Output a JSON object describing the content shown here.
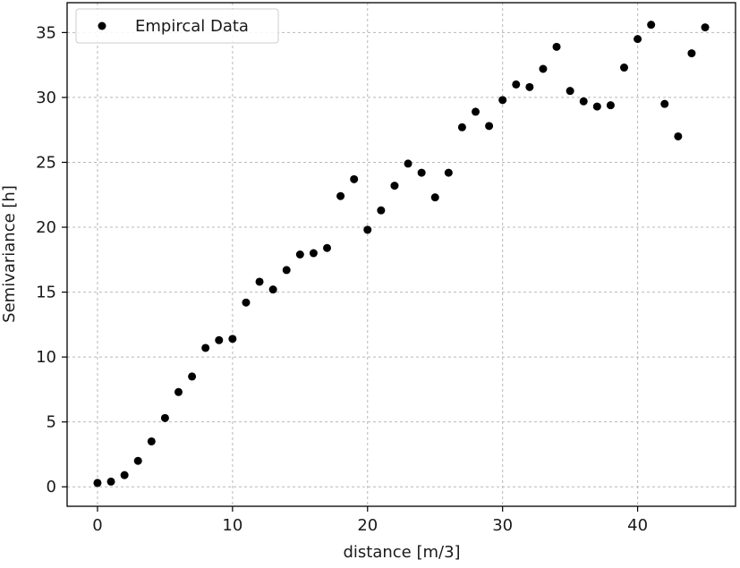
{
  "chart_data": {
    "type": "scatter",
    "title": "",
    "xlabel": "distance [m/3]",
    "ylabel": "Semivariance [h]",
    "xlim": [
      -2.25,
      47.25
    ],
    "ylim": [
      -1.5,
      37.3
    ],
    "xticks": [
      0,
      10,
      20,
      30,
      40
    ],
    "yticks": [
      0,
      5,
      10,
      15,
      20,
      25,
      30,
      35
    ],
    "grid": true,
    "legend_position": "top-left",
    "marker_color": "#000000",
    "series": [
      {
        "name": "Empircal Data",
        "x": [
          0,
          1,
          2,
          3,
          4,
          5,
          6,
          7,
          8,
          9,
          10,
          11,
          12,
          13,
          14,
          15,
          16,
          17,
          18,
          19,
          20,
          21,
          22,
          23,
          24,
          25,
          26,
          27,
          28,
          29,
          30,
          31,
          32,
          33,
          34,
          35,
          36,
          37,
          38,
          39,
          40,
          41,
          42,
          43,
          44,
          45
        ],
        "y": [
          0.3,
          0.4,
          0.9,
          2.0,
          3.5,
          5.3,
          7.3,
          8.5,
          10.7,
          11.3,
          11.4,
          14.2,
          15.8,
          15.2,
          16.7,
          17.9,
          18.0,
          18.4,
          22.4,
          23.7,
          19.8,
          21.3,
          23.2,
          24.9,
          24.2,
          22.3,
          24.2,
          27.7,
          28.9,
          27.8,
          29.8,
          31.0,
          30.8,
          32.2,
          33.9,
          30.5,
          29.7,
          29.3,
          29.4,
          32.3,
          34.5,
          35.6,
          29.5,
          27.0,
          33.4,
          35.4
        ]
      }
    ]
  }
}
